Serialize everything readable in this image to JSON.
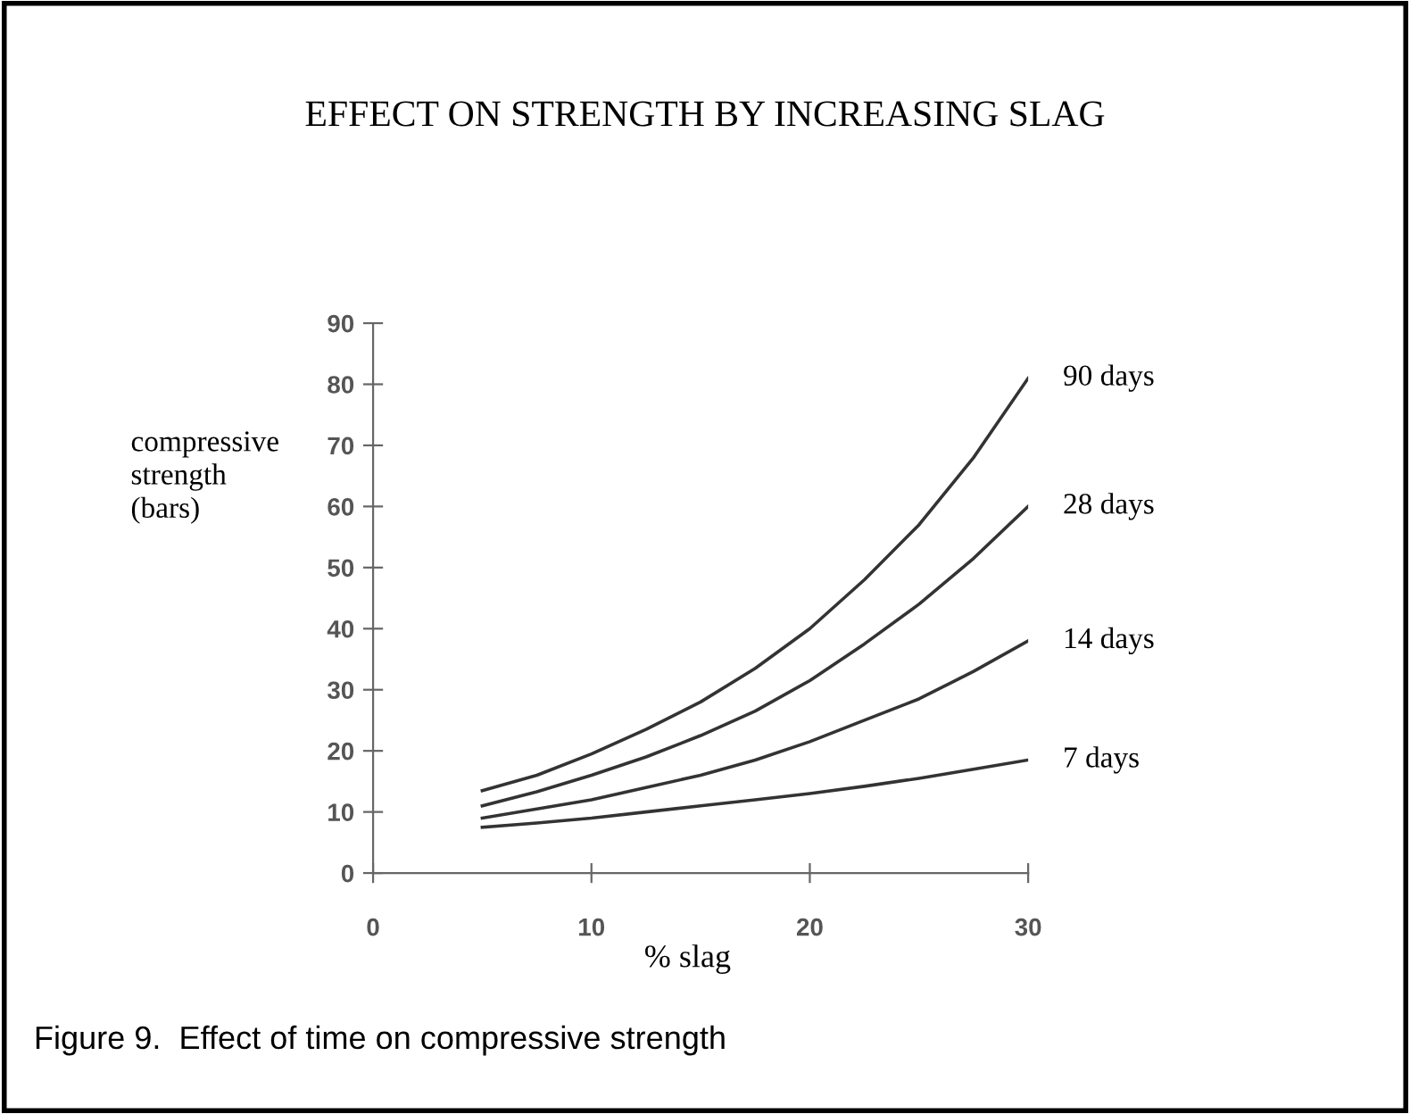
{
  "chart_data": {
    "type": "line",
    "title": "EFFECT ON STRENGTH BY INCREASING SLAG",
    "xlabel": "% slag",
    "ylabel": "compressive\nstrength\n(bars)",
    "x": [
      5,
      7.5,
      10,
      12.5,
      15,
      17.5,
      20,
      22.5,
      25,
      27.5,
      30
    ],
    "series": [
      {
        "name": "90 days",
        "color": "#333333",
        "values": [
          13.5,
          16,
          19.5,
          23.5,
          28,
          33.5,
          40,
          48,
          57,
          68,
          81
        ]
      },
      {
        "name": "28 days",
        "color": "#333333",
        "values": [
          11,
          13.3,
          16,
          19,
          22.5,
          26.5,
          31.5,
          37.5,
          44,
          51.5,
          60
        ]
      },
      {
        "name": "14 days",
        "color": "#333333",
        "values": [
          9,
          10.5,
          12,
          14,
          16,
          18.5,
          21.5,
          25,
          28.5,
          33,
          38
        ]
      },
      {
        "name": "7 days",
        "color": "#333333",
        "values": [
          7.5,
          8.2,
          9,
          10,
          11,
          12,
          13,
          14.2,
          15.5,
          17,
          18.5
        ]
      }
    ],
    "xlim": [
      0,
      30
    ],
    "xticks": [
      0,
      10,
      20,
      30
    ],
    "ylim": [
      0,
      90
    ],
    "yticks": [
      0,
      10,
      20,
      30,
      40,
      50,
      60,
      70,
      80,
      90
    ],
    "grid": false,
    "legend": false,
    "marker": "none",
    "line_style": "solid",
    "annotations": [
      "Figure 9.  Effect of time on compressive strength"
    ]
  }
}
